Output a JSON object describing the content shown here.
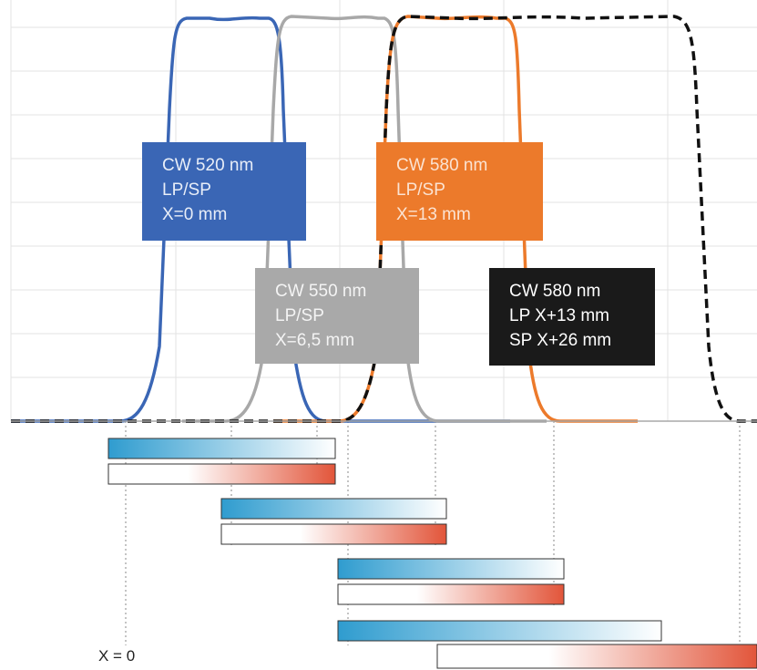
{
  "chart_data": {
    "type": "line",
    "series": [
      {
        "name": "CW 520 nm LP/SP X=0 mm",
        "color": "#3a66b5",
        "style": "solid"
      },
      {
        "name": "CW 550 nm LP/SP X=6,5 mm",
        "color": "#a8a8a8",
        "style": "solid"
      },
      {
        "name": "CW 580 nm LP/SP X=13 mm",
        "color": "#ec7a2b",
        "style": "solid"
      },
      {
        "name": "CW 580 nm LP X+13 mm SP X+26 mm",
        "color": "#111111",
        "style": "dashed"
      }
    ],
    "grid": true
  },
  "labels": {
    "blue": {
      "lines": [
        "CW 520 nm",
        "LP/SP",
        "X=0 mm"
      ],
      "bg": "#3a66b5",
      "fg": "#e8eef8"
    },
    "orange": {
      "lines": [
        "CW 580 nm",
        "LP/SP",
        "X=13 mm"
      ],
      "bg": "#ec7a2b",
      "fg": "#fbe3d2"
    },
    "gray": {
      "lines": [
        "CW 550 nm",
        "LP/SP",
        "X=6,5 mm"
      ],
      "bg": "#a9a9a9",
      "fg": "#f4f4f4"
    },
    "black": {
      "lines": [
        "CW 580 nm",
        "LP X+13 mm",
        "SP X+26 mm"
      ],
      "bg": "#1a1a1a",
      "fg": "#ffffff"
    }
  },
  "gradient_colors": {
    "blue": "#2f9ccf",
    "red": "#e2553a"
  },
  "origin_label": "X = 0"
}
